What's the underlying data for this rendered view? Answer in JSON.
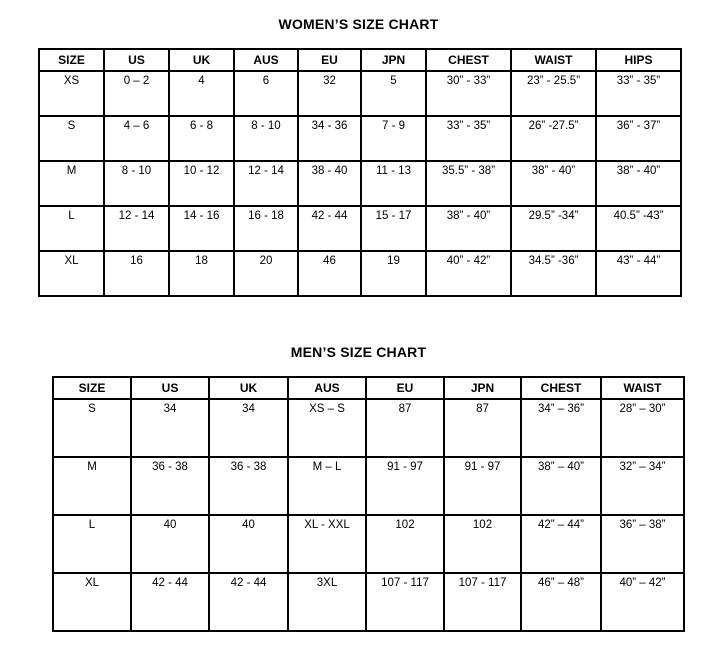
{
  "page": {
    "background_color": "#ffffff",
    "text_color": "#000000",
    "border_color": "#000000"
  },
  "women": {
    "title": "WOMEN’S SIZE CHART",
    "columns": [
      "SIZE",
      "US",
      "UK",
      "AUS",
      "EU",
      "JPN",
      "CHEST",
      "WAIST",
      "HIPS"
    ],
    "rows": [
      [
        "XS",
        "0 – 2",
        "4",
        "6",
        "32",
        "5",
        "30” - 33”",
        "23” - 25.5”",
        "33” - 35”"
      ],
      [
        "S",
        "4 – 6",
        "6 - 8",
        "8 - 10",
        "34 - 36",
        "7 - 9",
        "33” - 35”",
        "26” -27.5”",
        "36” - 37”"
      ],
      [
        "M",
        "8 - 10",
        "10 - 12",
        "12 - 14",
        "38 - 40",
        "11 - 13",
        "35.5” - 38”",
        "38” - 40”",
        "38” - 40”"
      ],
      [
        "L",
        "12 - 14",
        "14 - 16",
        "16 - 18",
        "42 - 44",
        "15 - 17",
        "38” - 40”",
        "29.5” -34”",
        "40.5” -43”"
      ],
      [
        "XL",
        "16",
        "18",
        "20",
        "46",
        "19",
        "40” - 42”",
        "34.5” -36”",
        "43” - 44”"
      ]
    ]
  },
  "men": {
    "title": "MEN’S SIZE CHART",
    "columns": [
      "SIZE",
      "US",
      "UK",
      "AUS",
      "EU",
      "JPN",
      "CHEST",
      "WAIST"
    ],
    "rows": [
      [
        "S",
        "34",
        "34",
        "XS – S",
        "87",
        "87",
        "34” – 36”",
        "28” – 30”"
      ],
      [
        "M",
        "36 - 38",
        "36 - 38",
        "M – L",
        "91 - 97",
        "91 - 97",
        "38” – 40”",
        "32” – 34”"
      ],
      [
        "L",
        "40",
        "40",
        "XL - XXL",
        "102",
        "102",
        "42” – 44”",
        "36” – 38”"
      ],
      [
        "XL",
        "42 - 44",
        "42 - 44",
        "3XL",
        "107 - 117",
        "107 - 117",
        "46” – 48”",
        "40” – 42”"
      ]
    ]
  },
  "chart_data": [
    {
      "type": "table",
      "title": "WOMEN’S SIZE CHART",
      "columns": [
        "SIZE",
        "US",
        "UK",
        "AUS",
        "EU",
        "JPN",
        "CHEST",
        "WAIST",
        "HIPS"
      ],
      "rows": [
        [
          "XS",
          "0 – 2",
          "4",
          "6",
          "32",
          "5",
          "30” - 33”",
          "23” - 25.5”",
          "33” - 35”"
        ],
        [
          "S",
          "4 – 6",
          "6 - 8",
          "8 - 10",
          "34 - 36",
          "7 - 9",
          "33” - 35”",
          "26” -27.5”",
          "36” - 37”"
        ],
        [
          "M",
          "8 - 10",
          "10 - 12",
          "12 - 14",
          "38 - 40",
          "11 - 13",
          "35.5” - 38”",
          "38” - 40”",
          "38” - 40”"
        ],
        [
          "L",
          "12 - 14",
          "14 - 16",
          "16 - 18",
          "42 - 44",
          "15 - 17",
          "38” - 40”",
          "29.5” -34”",
          "40.5” -43”"
        ],
        [
          "XL",
          "16",
          "18",
          "20",
          "46",
          "19",
          "40” - 42”",
          "34.5” -36”",
          "43” - 44”"
        ]
      ]
    },
    {
      "type": "table",
      "title": "MEN’S SIZE CHART",
      "columns": [
        "SIZE",
        "US",
        "UK",
        "AUS",
        "EU",
        "JPN",
        "CHEST",
        "WAIST"
      ],
      "rows": [
        [
          "S",
          "34",
          "34",
          "XS – S",
          "87",
          "87",
          "34” – 36”",
          "28” – 30”"
        ],
        [
          "M",
          "36 - 38",
          "36 - 38",
          "M – L",
          "91 - 97",
          "91 - 97",
          "38” – 40”",
          "32” – 34”"
        ],
        [
          "L",
          "40",
          "40",
          "XL - XXL",
          "102",
          "102",
          "42” – 44”",
          "36” – 38”"
        ],
        [
          "XL",
          "42 - 44",
          "42 - 44",
          "3XL",
          "107 - 117",
          "107 - 117",
          "46” – 48”",
          "40” – 42”"
        ]
      ]
    }
  ]
}
